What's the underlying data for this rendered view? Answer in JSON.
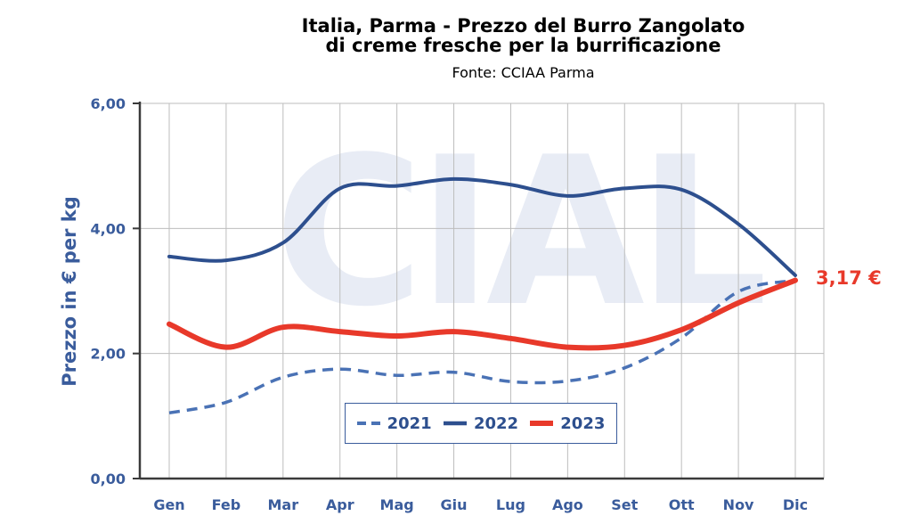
{
  "chart_data": {
    "type": "line",
    "title_lines": [
      "Italia, Parma - Prezzo del Burro Zangolato",
      "di creme fresche per la burrificazione"
    ],
    "subtitle": "Fonte: CCIAA Parma",
    "ylabel": "Prezzo in € per kg",
    "xlabel": "",
    "categories": [
      "Gen",
      "Feb",
      "Mar",
      "Apr",
      "Mag",
      "Giu",
      "Lug",
      "Ago",
      "Set",
      "Ott",
      "Nov",
      "Dic"
    ],
    "ylim": [
      0,
      6
    ],
    "yticks": [
      0,
      2,
      4,
      6
    ],
    "ytick_labels": [
      "0,00",
      "2,00",
      "4,00",
      "6,00"
    ],
    "grid": true,
    "legend_position": "bottom-center",
    "watermark": "CIAL",
    "series": [
      {
        "name": "2021",
        "style": "dashed",
        "color": "#4a72b5",
        "values": [
          1.05,
          1.22,
          1.62,
          1.75,
          1.65,
          1.7,
          1.55,
          1.56,
          1.77,
          2.25,
          2.99,
          3.17
        ]
      },
      {
        "name": "2022",
        "style": "solid",
        "color": "#2d4f8e",
        "values": [
          3.55,
          3.49,
          3.77,
          4.64,
          4.68,
          4.79,
          4.7,
          4.52,
          4.64,
          4.62,
          4.07,
          3.25
        ]
      },
      {
        "name": "2023",
        "style": "solid-thick",
        "color": "#e8392a",
        "values": [
          2.47,
          2.1,
          2.42,
          2.35,
          2.28,
          2.35,
          2.24,
          2.1,
          2.13,
          2.38,
          2.81,
          3.17
        ]
      }
    ],
    "annotation": "3,17 €"
  }
}
